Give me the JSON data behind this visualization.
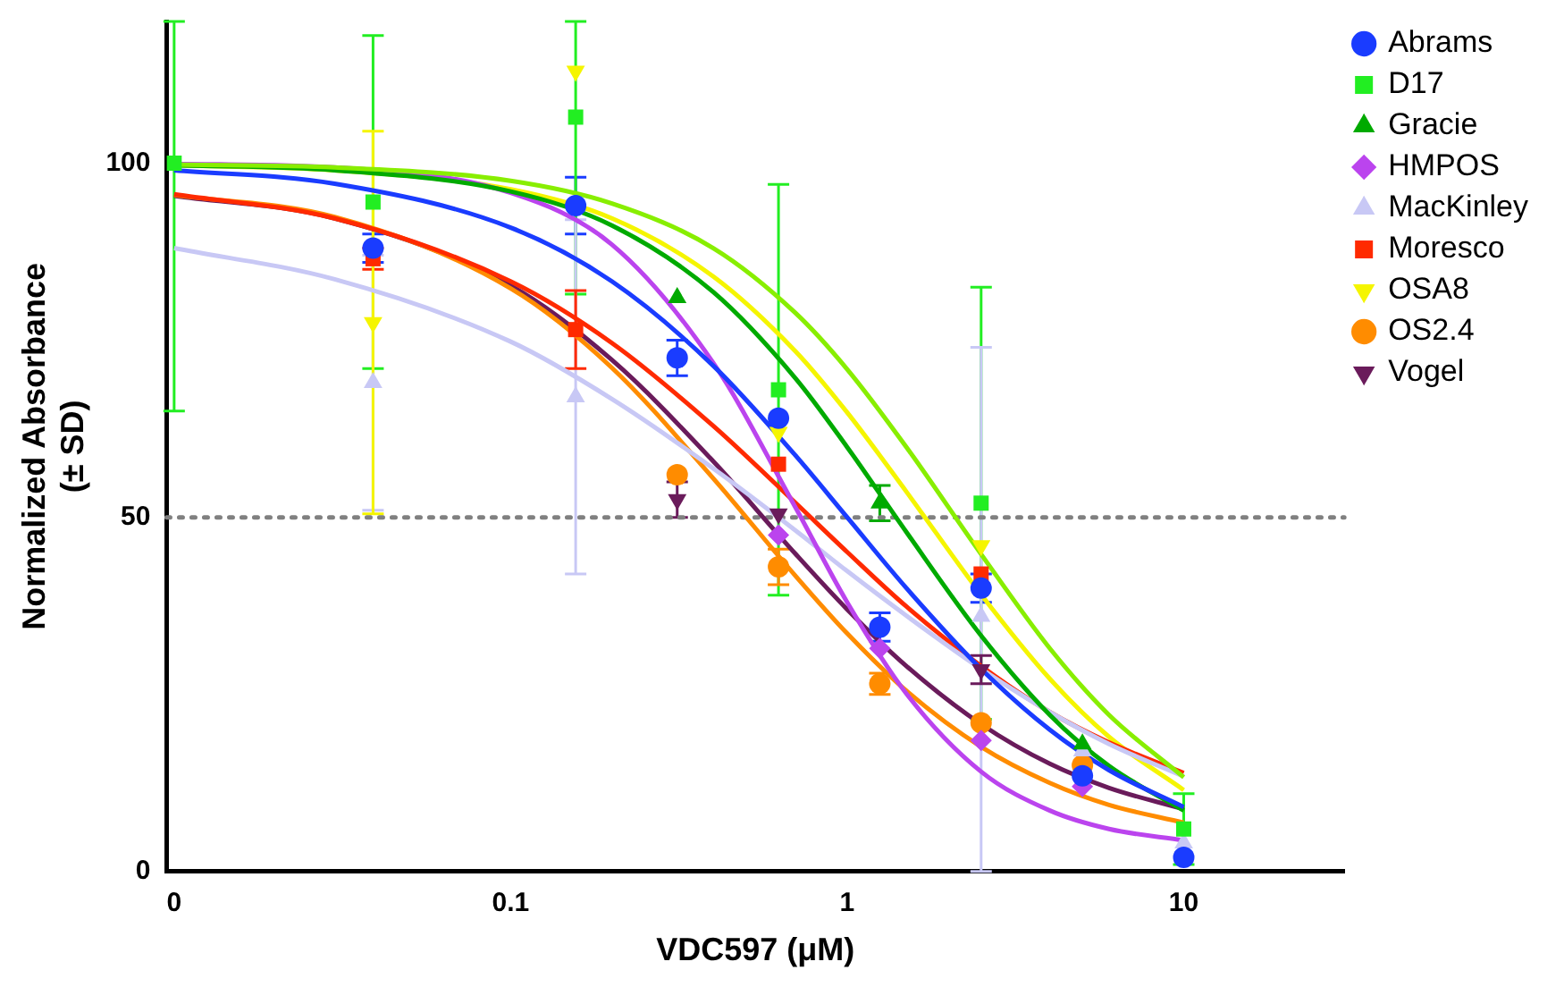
{
  "chart_data": {
    "type": "scatter",
    "xlabel": "VDC597 (μM)",
    "ylabel": "Normalized Absorbance (± SD)",
    "log": "x",
    "xlim": [
      0.0095,
      30
    ],
    "xticks": [
      {
        "value": 0.01,
        "label": "0"
      },
      0.1,
      1,
      10
    ],
    "ylim": [
      0,
      120
    ],
    "yticks": [
      0,
      50,
      100
    ],
    "grid": false,
    "legend": "right",
    "x": [
      0.01,
      0.039,
      0.156,
      0.3125,
      0.625,
      1.25,
      2.5,
      5,
      10
    ],
    "ref_lines": [
      {
        "axis": "y",
        "value": 50,
        "color": "#808080",
        "line_style": "dotted"
      }
    ],
    "series": [
      {
        "type": "line",
        "color": "#1a3cff",
        "marker": "none",
        "x": [
          0.01,
          0.03,
          0.1,
          0.2,
          0.4,
          0.7,
          1,
          1.5,
          2.5,
          4,
          6,
          10
        ],
        "values": [
          99.0,
          97.1,
          90.9,
          83.3,
          71.4,
          58.8,
          50,
          40,
          28.6,
          20,
          14.3,
          9.1
        ]
      },
      {
        "type": "line",
        "color": "#88ee00",
        "marker": "none",
        "x": [
          0.01,
          0.03,
          0.1,
          0.2,
          0.4,
          0.7,
          1,
          1.5,
          2.5,
          4,
          6,
          10
        ],
        "values": [
          99.8,
          99.4,
          97.5,
          94.3,
          88,
          78.9,
          70.9,
          59.9,
          44.8,
          31.5,
          22.1,
          13.3
        ]
      },
      {
        "type": "line",
        "color": "#00aa00",
        "marker": "none",
        "x": [
          0.01,
          0.03,
          0.1,
          0.2,
          0.4,
          0.7,
          1,
          1.5,
          2.5,
          4,
          6,
          10
        ],
        "values": [
          99.7,
          99.0,
          96.0,
          91.2,
          81.8,
          69.7,
          59.9,
          47.9,
          33.3,
          22.1,
          14.9,
          8.6
        ]
      },
      {
        "type": "line",
        "color": "#bb44ee",
        "marker": "none",
        "x": [
          0.01,
          0.03,
          0.1,
          0.2,
          0.4,
          0.7,
          1,
          1.5,
          2.5,
          4,
          6,
          10
        ],
        "values": [
          99.9,
          99.4,
          95.8,
          88.5,
          71.8,
          51.5,
          38.0,
          25.1,
          14.1,
          8.6,
          6.0,
          4.4
        ]
      },
      {
        "type": "line",
        "color": "#c8c8f5",
        "marker": "none",
        "x": [
          0.01,
          0.03,
          0.1,
          0.2,
          0.4,
          0.7,
          1,
          1.5,
          2.5,
          4,
          6,
          10
        ],
        "values": [
          88.0,
          83.6,
          74.8,
          66.7,
          56.9,
          48.2,
          42.4,
          36.1,
          28.6,
          22.5,
          18.0,
          13.4
        ]
      },
      {
        "type": "line",
        "color": "#ff2a00",
        "marker": "none",
        "x": [
          0.01,
          0.03,
          0.1,
          0.2,
          0.4,
          0.7,
          1,
          1.5,
          2.5,
          4,
          6,
          10
        ],
        "values": [
          95.6,
          92.2,
          83.3,
          74.6,
          62.9,
          52.1,
          45.1,
          37.4,
          29.0,
          22.5,
          18.2,
          13.9
        ]
      },
      {
        "type": "line",
        "color": "#f5f500",
        "marker": "none",
        "x": [
          0.01,
          0.03,
          0.1,
          0.2,
          0.4,
          0.7,
          1,
          1.5,
          2.5,
          4,
          6,
          10
        ],
        "values": [
          99.7,
          99.0,
          96.3,
          92.2,
          84.0,
          73.5,
          64.8,
          53.6,
          39.1,
          27.2,
          19.0,
          11.5
        ]
      },
      {
        "type": "line",
        "color": "#ff8c00",
        "marker": "none",
        "x": [
          0.01,
          0.03,
          0.1,
          0.2,
          0.4,
          0.7,
          1,
          1.5,
          2.5,
          4,
          6,
          10
        ],
        "values": [
          95.5,
          92.4,
          82.3,
          71.1,
          55.5,
          41.8,
          33.6,
          25.5,
          17.6,
          12.5,
          9.4,
          6.9
        ]
      },
      {
        "type": "line",
        "color": "#6a1b5b",
        "marker": "none",
        "x": [
          0.01,
          0.03,
          0.1,
          0.2,
          0.4,
          0.7,
          1,
          1.5,
          2.5,
          4,
          6,
          10
        ],
        "values": [
          95.4,
          92.2,
          82.7,
          72.2,
          57.9,
          44.9,
          37.0,
          29.0,
          20.8,
          15.2,
          11.8,
          8.8
        ]
      },
      {
        "name": "Abrams",
        "color": "#1a3cff",
        "marker": "circle",
        "values": [
          null,
          88,
          94,
          72.5,
          64,
          34.5,
          40,
          13.5,
          2
        ],
        "errors": [
          null,
          2,
          4,
          2.5,
          null,
          2,
          2,
          null,
          null
        ]
      },
      {
        "name": "D17",
        "color": "#22ee22",
        "marker": "square",
        "values": [
          100,
          94.5,
          106.5,
          null,
          68,
          null,
          52,
          null,
          6
        ],
        "errors": [
          [
            65,
            120
          ],
          23.5,
          [
            81.5,
            120
          ],
          null,
          29,
          null,
          30.5,
          null,
          5
        ]
      },
      {
        "name": "Gracie",
        "color": "#00aa00",
        "marker": "triangle",
        "values": [
          null,
          null,
          null,
          81,
          null,
          52,
          null,
          18,
          null
        ],
        "errors": [
          null,
          null,
          null,
          null,
          null,
          2.5,
          null,
          null,
          null
        ]
      },
      {
        "name": "HMPOS",
        "color": "#bb44ee",
        "marker": "diamond",
        "values": [
          null,
          null,
          null,
          null,
          47.5,
          31.5,
          18.5,
          12,
          null
        ]
      },
      {
        "name": "MacKinley",
        "color": "#c8c8f5",
        "marker": "triangle",
        "values": [
          null,
          69,
          67,
          null,
          null,
          null,
          36,
          17,
          4
        ],
        "errors": [
          null,
          18,
          25,
          null,
          null,
          null,
          [
            0,
            74
          ],
          null,
          null
        ]
      },
      {
        "name": "Moresco",
        "color": "#ff2a00",
        "marker": "square",
        "values": [
          null,
          86.5,
          76.5,
          null,
          57.5,
          null,
          42,
          null,
          null
        ],
        "errors": [
          null,
          1.5,
          5.5,
          null,
          null,
          null,
          null,
          null,
          null
        ]
      },
      {
        "name": "OSA8",
        "color": "#f5f500",
        "marker": "triangle-down",
        "values": [
          null,
          77.5,
          113,
          null,
          62,
          null,
          46,
          null,
          null
        ],
        "errors": [
          null,
          27,
          null,
          null,
          null,
          null,
          null,
          null,
          null
        ]
      },
      {
        "name": "OS2.4",
        "color": "#ff8c00",
        "marker": "circle",
        "values": [
          null,
          null,
          null,
          56,
          43,
          26.5,
          21,
          15,
          null
        ],
        "errors": [
          null,
          null,
          null,
          null,
          2.5,
          1.5,
          null,
          null,
          null
        ]
      },
      {
        "name": "Vogel",
        "color": "#6a1b5b",
        "marker": "triangle-down",
        "values": [
          null,
          null,
          null,
          52.5,
          50.5,
          null,
          28.5,
          null,
          null
        ],
        "errors": [
          null,
          null,
          null,
          2.5,
          null,
          null,
          2,
          null,
          null
        ]
      }
    ]
  }
}
